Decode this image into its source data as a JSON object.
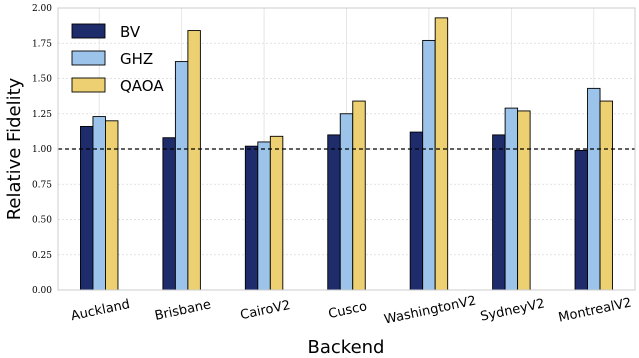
{
  "chart_data": {
    "type": "bar",
    "title": "",
    "xlabel": "Backend",
    "ylabel": "Relative Fidelity",
    "categories": [
      "Auckland",
      "Brisbane",
      "CairoV2",
      "Cusco",
      "WashingtonV2",
      "SydneyV2",
      "MontrealV2"
    ],
    "series": [
      {
        "name": "BV",
        "color": "#1f2c6b",
        "values": [
          1.16,
          1.08,
          1.02,
          1.1,
          1.12,
          1.1,
          0.99
        ]
      },
      {
        "name": "GHZ",
        "color": "#9cc3ea",
        "values": [
          1.23,
          1.62,
          1.05,
          1.25,
          1.77,
          1.29,
          1.43
        ]
      },
      {
        "name": "QAOA",
        "color": "#ecd072",
        "values": [
          1.2,
          1.84,
          1.09,
          1.34,
          1.93,
          1.27,
          1.34
        ]
      }
    ],
    "ylim": [
      0.0,
      2.0
    ],
    "yticks": [
      "0.00",
      "0.25",
      "0.50",
      "0.75",
      "1.00",
      "1.25",
      "1.50",
      "1.75",
      "2.00"
    ],
    "reference_line": 1.0,
    "grid": true,
    "legend_position": "top-left"
  }
}
